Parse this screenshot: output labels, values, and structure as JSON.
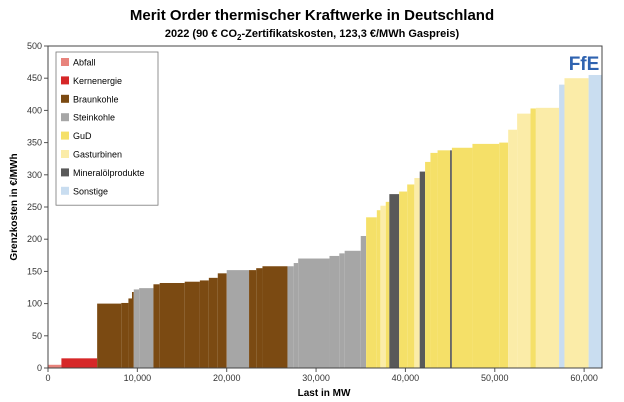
{
  "chart_data": {
    "type": "area",
    "title": "Merit Order thermischer Kraftwerke in Deutschland",
    "subtitle_parts": {
      "before": "2022 (90 € CO",
      "sub": "2",
      "after": "-Zertifikatskosten, 123,3 €/MWh Gaspreis)"
    },
    "xlabel": "Last in MW",
    "ylabel": "Grenzkosten in €/MWh",
    "xlim": [
      0,
      62000
    ],
    "ylim": [
      0,
      500
    ],
    "x_ticks": [
      0,
      10000,
      20000,
      30000,
      40000,
      50000,
      60000
    ],
    "x_tick_labels": [
      "0",
      "10,000",
      "20,000",
      "30,000",
      "40,000",
      "50,000",
      "60,000"
    ],
    "y_ticks": [
      0,
      50,
      100,
      150,
      200,
      250,
      300,
      350,
      400,
      450,
      500
    ],
    "y_tick_labels": [
      "0",
      "50",
      "100",
      "150",
      "200",
      "250",
      "300",
      "350",
      "400",
      "450",
      "500"
    ],
    "legend": [
      {
        "name": "Abfall",
        "color": "#e8837c"
      },
      {
        "name": "Kernenergie",
        "color": "#d62728"
      },
      {
        "name": "Braunkohle",
        "color": "#7b4a12"
      },
      {
        "name": "Steinkohle",
        "color": "#a6a6a6"
      },
      {
        "name": "GuD",
        "color": "#f5e068"
      },
      {
        "name": "Gasturbinen",
        "color": "#fbeca8"
      },
      {
        "name": "Mineralölprodukte",
        "color": "#595959"
      },
      {
        "name": "Sonstige",
        "color": "#c9ddf0"
      }
    ],
    "logo_text": "FfE",
    "blocks": [
      {
        "type": "Abfall",
        "x0": 0,
        "x1": 1500,
        "y": 5
      },
      {
        "type": "Kernenergie",
        "x0": 1500,
        "x1": 5500,
        "y": 15
      },
      {
        "type": "Braunkohle",
        "x0": 5500,
        "x1": 8200,
        "y": 100
      },
      {
        "type": "Braunkohle",
        "x0": 8200,
        "x1": 9000,
        "y": 101
      },
      {
        "type": "Braunkohle",
        "x0": 9000,
        "x1": 9400,
        "y": 108
      },
      {
        "type": "Braunkohle",
        "x0": 9400,
        "x1": 9600,
        "y": 118
      },
      {
        "type": "Steinkohle",
        "x0": 9600,
        "x1": 10200,
        "y": 122
      },
      {
        "type": "Steinkohle",
        "x0": 10200,
        "x1": 11800,
        "y": 124
      },
      {
        "type": "Braunkohle",
        "x0": 11800,
        "x1": 12500,
        "y": 130
      },
      {
        "type": "Braunkohle",
        "x0": 12500,
        "x1": 15300,
        "y": 132
      },
      {
        "type": "Braunkohle",
        "x0": 15300,
        "x1": 17000,
        "y": 134
      },
      {
        "type": "Braunkohle",
        "x0": 17000,
        "x1": 18000,
        "y": 136
      },
      {
        "type": "Braunkohle",
        "x0": 18000,
        "x1": 19000,
        "y": 140
      },
      {
        "type": "Braunkohle",
        "x0": 19000,
        "x1": 20000,
        "y": 147
      },
      {
        "type": "Steinkohle",
        "x0": 20000,
        "x1": 22500,
        "y": 152
      },
      {
        "type": "Braunkohle",
        "x0": 22500,
        "x1": 23300,
        "y": 152
      },
      {
        "type": "Braunkohle",
        "x0": 23300,
        "x1": 24000,
        "y": 155
      },
      {
        "type": "Braunkohle",
        "x0": 24000,
        "x1": 26800,
        "y": 158
      },
      {
        "type": "Steinkohle",
        "x0": 26800,
        "x1": 27500,
        "y": 158
      },
      {
        "type": "Steinkohle",
        "x0": 27500,
        "x1": 28000,
        "y": 163
      },
      {
        "type": "Steinkohle",
        "x0": 28000,
        "x1": 31500,
        "y": 170
      },
      {
        "type": "Steinkohle",
        "x0": 31500,
        "x1": 32600,
        "y": 174
      },
      {
        "type": "Steinkohle",
        "x0": 32600,
        "x1": 33200,
        "y": 178
      },
      {
        "type": "Steinkohle",
        "x0": 33200,
        "x1": 35000,
        "y": 182
      },
      {
        "type": "Steinkohle",
        "x0": 35000,
        "x1": 35600,
        "y": 205
      },
      {
        "type": "GuD",
        "x0": 35600,
        "x1": 36800,
        "y": 234
      },
      {
        "type": "GuD",
        "x0": 36800,
        "x1": 37200,
        "y": 245
      },
      {
        "type": "Gasturbinen",
        "x0": 37200,
        "x1": 37800,
        "y": 252
      },
      {
        "type": "GuD",
        "x0": 37800,
        "x1": 38200,
        "y": 258
      },
      {
        "type": "Mineralölprodukte",
        "x0": 38200,
        "x1": 39300,
        "y": 270
      },
      {
        "type": "GuD",
        "x0": 39300,
        "x1": 40200,
        "y": 274
      },
      {
        "type": "GuD",
        "x0": 40200,
        "x1": 41000,
        "y": 285
      },
      {
        "type": "Gasturbinen",
        "x0": 41000,
        "x1": 41600,
        "y": 295
      },
      {
        "type": "Mineralölprodukte",
        "x0": 41600,
        "x1": 42200,
        "y": 305
      },
      {
        "type": "GuD",
        "x0": 42200,
        "x1": 42800,
        "y": 320
      },
      {
        "type": "GuD",
        "x0": 42800,
        "x1": 43600,
        "y": 334
      },
      {
        "type": "GuD",
        "x0": 43600,
        "x1": 45000,
        "y": 338
      },
      {
        "type": "Mineralölprodukte",
        "x0": 45000,
        "x1": 45200,
        "y": 338
      },
      {
        "type": "GuD",
        "x0": 45200,
        "x1": 47500,
        "y": 342
      },
      {
        "type": "GuD",
        "x0": 47500,
        "x1": 50500,
        "y": 348
      },
      {
        "type": "GuD",
        "x0": 50500,
        "x1": 51500,
        "y": 350
      },
      {
        "type": "Gasturbinen",
        "x0": 51500,
        "x1": 52500,
        "y": 370
      },
      {
        "type": "Gasturbinen",
        "x0": 52500,
        "x1": 54000,
        "y": 395
      },
      {
        "type": "GuD",
        "x0": 54000,
        "x1": 54600,
        "y": 403
      },
      {
        "type": "Gasturbinen",
        "x0": 54600,
        "x1": 57200,
        "y": 404
      },
      {
        "type": "Sonstige",
        "x0": 57200,
        "x1": 57800,
        "y": 440
      },
      {
        "type": "Gasturbinen",
        "x0": 57800,
        "x1": 60500,
        "y": 450
      },
      {
        "type": "Sonstige",
        "x0": 60500,
        "x1": 62000,
        "y": 455
      }
    ]
  }
}
